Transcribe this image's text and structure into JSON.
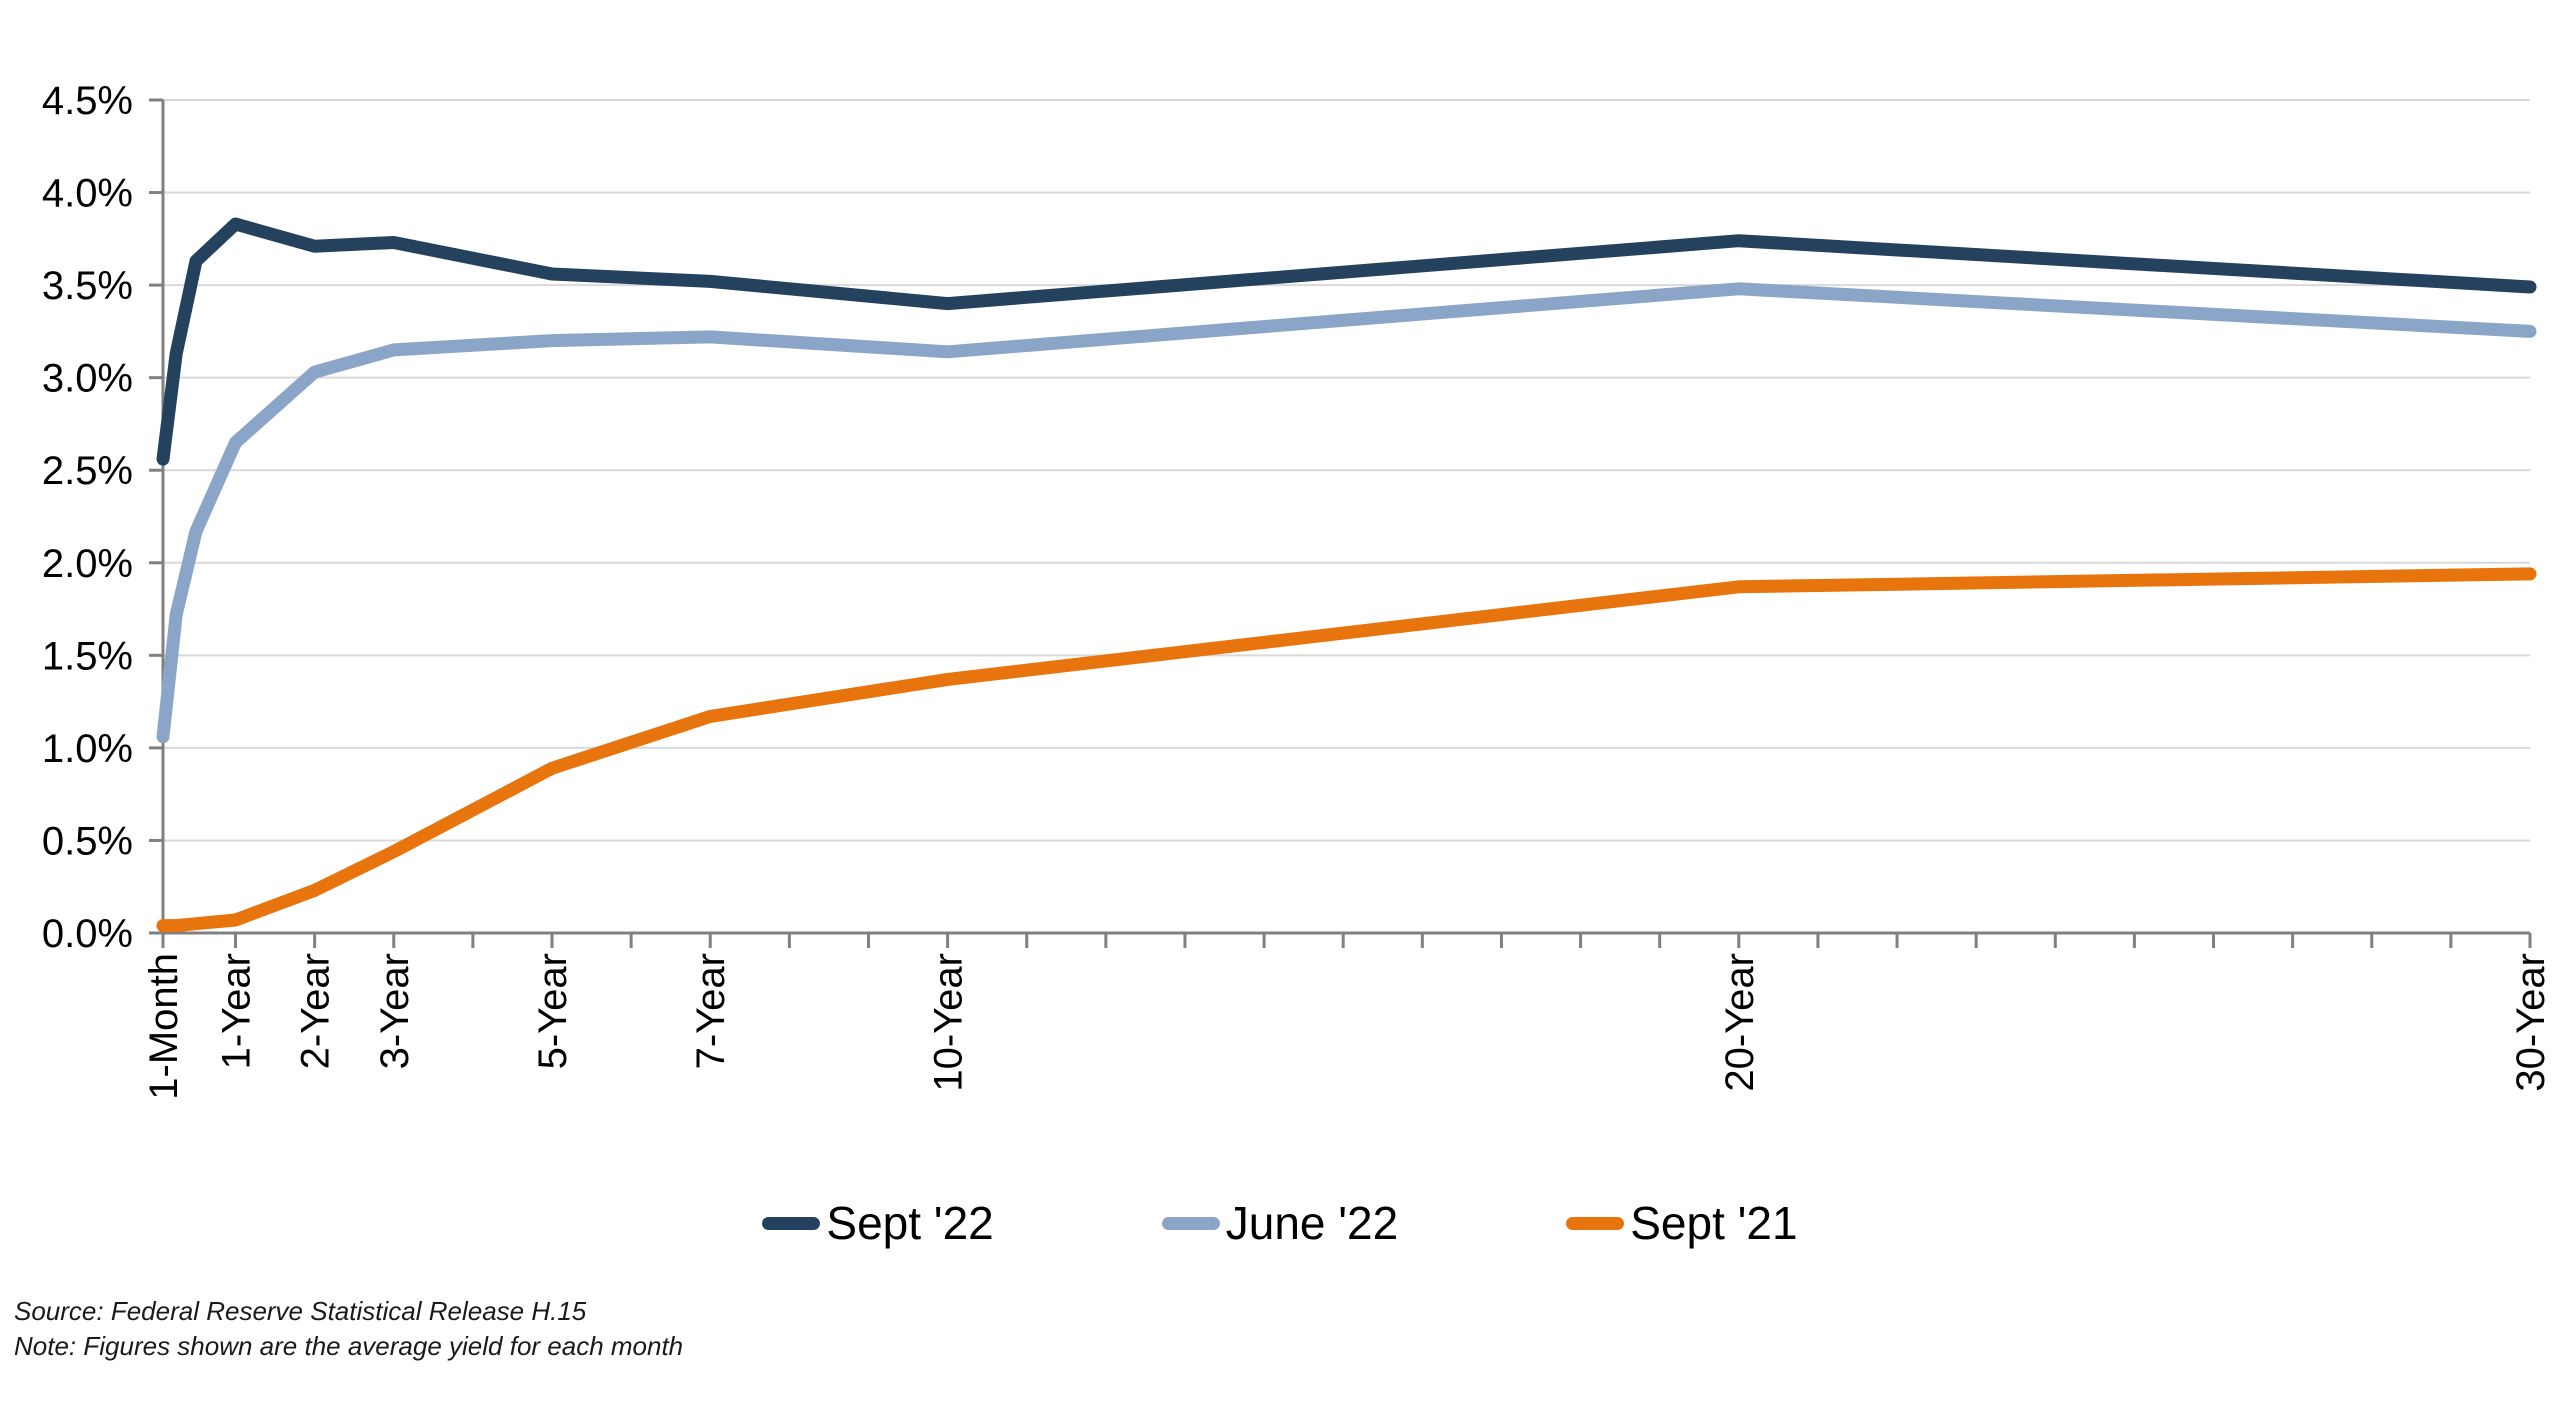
{
  "page": {
    "background": "#ffffff"
  },
  "footer": {
    "source_line": "Source: Federal Reserve Statistical Release H.15",
    "note_line": "Note: Figures shown are the average yield for each month"
  },
  "chart_data": {
    "type": "line",
    "title": "",
    "x_axis": {
      "unit": "years-to-maturity",
      "scale": "linear",
      "min_years": 0.0833,
      "max_years": 30,
      "minor_tick_every_years": 1,
      "tick_labels": [
        {
          "label": "1-Month",
          "years": 0.0833
        },
        {
          "label": "1-Year",
          "years": 1
        },
        {
          "label": "2-Year",
          "years": 2
        },
        {
          "label": "3-Year",
          "years": 3
        },
        {
          "label": "5-Year",
          "years": 5
        },
        {
          "label": "7-Year",
          "years": 7
        },
        {
          "label": "10-Year",
          "years": 10
        },
        {
          "label": "20-Year",
          "years": 20
        },
        {
          "label": "30-Year",
          "years": 30
        }
      ]
    },
    "y_axis": {
      "min": 0,
      "max": 4.5,
      "step": 0.5,
      "tick_labels": [
        "0.0%",
        "0.5%",
        "1.0%",
        "1.5%",
        "2.0%",
        "2.5%",
        "3.0%",
        "3.5%",
        "4.0%",
        "4.5%"
      ]
    },
    "x_years": [
      0.0833,
      0.25,
      0.5,
      1,
      2,
      3,
      5,
      7,
      10,
      20,
      30
    ],
    "series": [
      {
        "name": "Sept '22",
        "color": "#24415d",
        "values": [
          2.56,
          3.13,
          3.63,
          3.83,
          3.71,
          3.73,
          3.56,
          3.52,
          3.4,
          3.74,
          3.49
        ]
      },
      {
        "name": "June '22",
        "color": "#8ba5c8",
        "values": [
          1.06,
          1.72,
          2.17,
          2.65,
          3.03,
          3.15,
          3.2,
          3.22,
          3.14,
          3.48,
          3.25
        ]
      },
      {
        "name": "Sept '21",
        "color": "#e8740d",
        "values": [
          0.04,
          0.04,
          0.05,
          0.07,
          0.23,
          0.44,
          0.89,
          1.17,
          1.37,
          1.87,
          1.94
        ]
      }
    ],
    "grid": true,
    "legend_position": "bottom",
    "colors": {
      "gridline": "#d9d9d9",
      "axis": "#808080",
      "label": "#000000"
    }
  }
}
